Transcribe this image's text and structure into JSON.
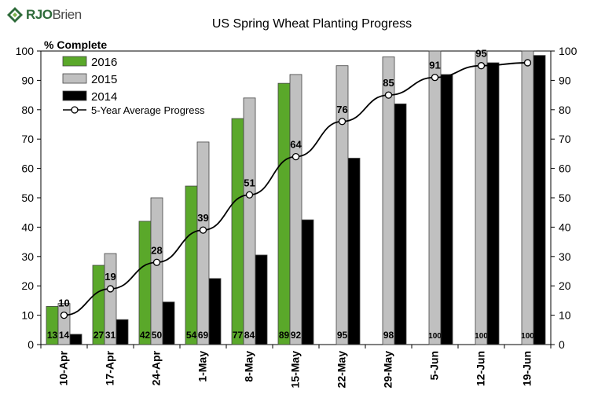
{
  "logo": {
    "brand": "RJO",
    "brand_suffix": "Brien",
    "brand_color": "#2e6b3a"
  },
  "chart_data": {
    "type": "bar",
    "title": "US Spring Wheat Planting Progress",
    "ylabel": "% Complete",
    "ylim": [
      0,
      100
    ],
    "yticks": [
      0,
      10,
      20,
      30,
      40,
      50,
      60,
      70,
      80,
      90,
      100
    ],
    "y_axis_both_sides": true,
    "grid": false,
    "legend_position": "top-left",
    "categories": [
      "10-Apr",
      "17-Apr",
      "24-Apr",
      "1-May",
      "8-May",
      "15-May",
      "22-May",
      "29-May",
      "5-Jun",
      "12-Jun",
      "19-Jun"
    ],
    "series": [
      {
        "name": "2016",
        "kind": "bar",
        "color": "#5aa82a",
        "values": [
          13,
          27,
          42,
          54,
          77,
          89,
          null,
          null,
          null,
          null,
          null
        ],
        "labels": [
          "13",
          "27",
          "42",
          "54",
          "77",
          "89",
          "",
          "",
          "",
          "",
          ""
        ]
      },
      {
        "name": "2015",
        "kind": "bar",
        "color": "#c0c0c0",
        "values": [
          14,
          31,
          50,
          69,
          84,
          92,
          95,
          98,
          100,
          100,
          100
        ],
        "labels": [
          "14",
          "31",
          "50",
          "69",
          "84",
          "92",
          "95",
          "98",
          "100",
          "100",
          "100"
        ]
      },
      {
        "name": "2014",
        "kind": "bar",
        "color": "#000000",
        "values": [
          3.5,
          8.5,
          14.5,
          22.5,
          30.5,
          42.5,
          63.5,
          82,
          92,
          96,
          98.5
        ],
        "labels": [
          "",
          "",
          "",
          "",
          "",
          "",
          "",
          "",
          "",
          "",
          ""
        ]
      },
      {
        "name": "5-Year Average Progress",
        "kind": "line",
        "color": "#000000",
        "values": [
          10,
          19,
          28,
          39,
          51,
          64,
          76,
          85,
          91,
          95,
          96
        ],
        "labels": [
          "10",
          "19",
          "28",
          "39",
          "51",
          "64",
          "76",
          "85",
          "91",
          "95",
          ""
        ]
      }
    ]
  }
}
